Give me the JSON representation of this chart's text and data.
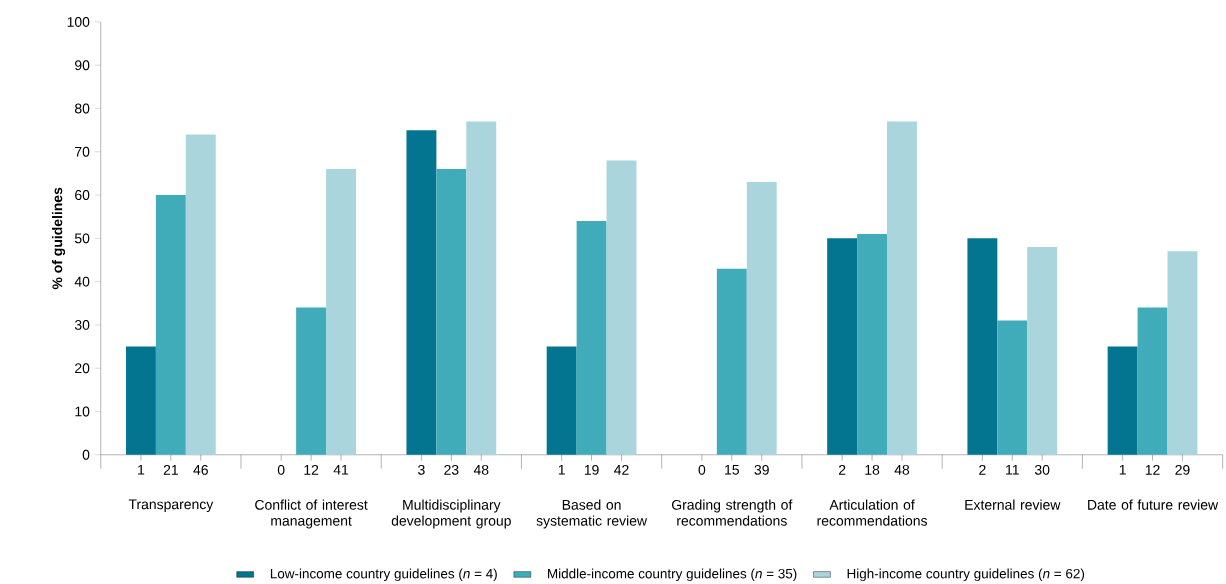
{
  "chart_data": {
    "type": "bar",
    "ylabel": "% of guidelines",
    "categories": [
      "Transparency",
      "Conflict of interest management",
      "Multidisciplinary development group",
      "Based on systematic review",
      "Grading strength of recommendations",
      "Articulation of recommendations",
      "External review",
      "Date of future review"
    ],
    "series": [
      {
        "name": "Low-income country guidelines (*n* = 4)",
        "color": "#037590",
        "values": [
          25,
          0,
          75,
          25,
          0,
          50,
          50,
          25
        ]
      },
      {
        "name": "Middle-income country guidelines (*n* = 35)",
        "color": "#40acb9",
        "values": [
          60,
          34,
          66,
          54,
          43,
          51,
          31,
          34
        ]
      },
      {
        "name": "High-income country guidelines (*n* = 62)",
        "color": "#aad5dc",
        "values": [
          74,
          66,
          77,
          68,
          63,
          77,
          48,
          47
        ]
      }
    ],
    "annotations": [
      "1",
      "21",
      "46",
      "0",
      "12",
      "41",
      "3",
      "23",
      "48",
      "1",
      "19",
      "42",
      "0",
      "15",
      "39",
      "2",
      "18",
      "48",
      "2",
      "11",
      "30",
      "1",
      "12",
      "29"
    ],
    "ylim": [
      0,
      100
    ],
    "yticks": [
      0,
      10,
      20,
      30,
      40,
      50,
      60,
      70,
      80,
      90,
      100
    ],
    "legend": "bottom"
  }
}
